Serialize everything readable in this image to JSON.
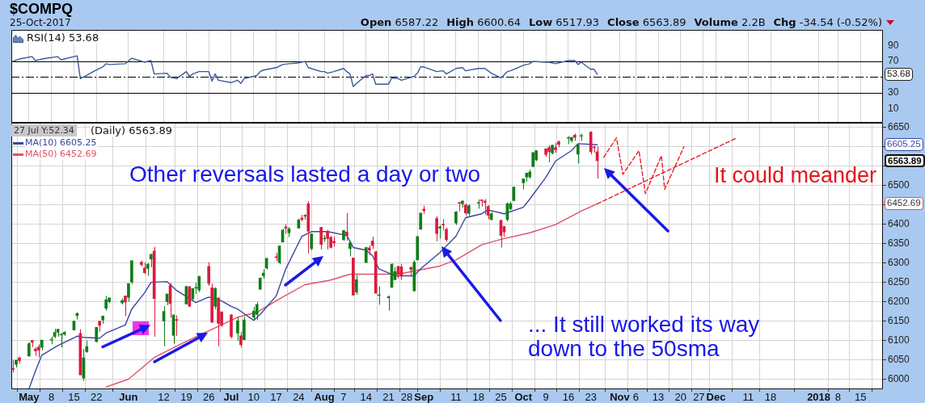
{
  "chart_data": [
    {
      "type": "line",
      "title": "$COMPQ",
      "subtitle": "25-Oct-2017",
      "annotations": [
        "Open 6587.22",
        "High 6600.64",
        "Low 6517.93",
        "Close 6563.89",
        "Volume 2.2B",
        "Chg -34.54 (-0.52%)",
        "53.68"
      ],
      "series": [
        {
          "name": "RSI(14) 53.68",
          "color": "#3b5998",
          "x": [
            "2017-04-26",
            "2017-04-28",
            "2017-05-02",
            "2017-05-03",
            "2017-05-05",
            "2017-05-10",
            "2017-05-11",
            "2017-05-16",
            "2017-05-17",
            "2017-05-18",
            "2017-05-22",
            "2017-05-24",
            "2017-05-25",
            "2017-05-26",
            "2017-05-31",
            "2017-06-02",
            "2017-06-06",
            "2017-06-08",
            "2017-06-09",
            "2017-06-13",
            "2017-06-14",
            "2017-06-16",
            "2017-06-19",
            "2017-06-20",
            "2017-06-21",
            "2017-06-23",
            "2017-06-26",
            "2017-06-27",
            "2017-06-28",
            "2017-06-29",
            "2017-07-03",
            "2017-07-05",
            "2017-07-06",
            "2017-07-07",
            "2017-07-11",
            "2017-07-12",
            "2017-07-13",
            "2017-07-17",
            "2017-07-19",
            "2017-07-21",
            "2017-07-24",
            "2017-07-26",
            "2017-07-27",
            "2017-07-31",
            "2017-08-01",
            "2017-08-02",
            "2017-08-04",
            "2017-08-07",
            "2017-08-08",
            "2017-08-09",
            "2017-08-10",
            "2017-08-11",
            "2017-08-14",
            "2017-08-15",
            "2017-08-16",
            "2017-08-17",
            "2017-08-21",
            "2017-08-22",
            "2017-08-24",
            "2017-08-25",
            "2017-08-29",
            "2017-08-30",
            "2017-08-31",
            "2017-09-01",
            "2017-09-05",
            "2017-09-07",
            "2017-09-08",
            "2017-09-11",
            "2017-09-13",
            "2017-09-14",
            "2017-09-18",
            "2017-09-20",
            "2017-09-22",
            "2017-09-25",
            "2017-09-27",
            "2017-09-28",
            "2017-10-02",
            "2017-10-04",
            "2017-10-05",
            "2017-10-09",
            "2017-10-10",
            "2017-10-12",
            "2017-10-16",
            "2017-10-18",
            "2017-10-19",
            "2017-10-20",
            "2017-10-23",
            "2017-10-24",
            "2017-10-25"
          ],
          "values": [
            70,
            73,
            76,
            71,
            73,
            76,
            72,
            77,
            48,
            50,
            59,
            63,
            67,
            66,
            67,
            74,
            69,
            71,
            54,
            55,
            50,
            48,
            57,
            51,
            54,
            57,
            57,
            45,
            54,
            46,
            43,
            46,
            42,
            48,
            52,
            57,
            59,
            62,
            66,
            67,
            68,
            70,
            62,
            57,
            57,
            55,
            57,
            61,
            57,
            54,
            38,
            42,
            52,
            52,
            54,
            41,
            41,
            49,
            48,
            46,
            51,
            55,
            63,
            63,
            57,
            58,
            54,
            61,
            62,
            58,
            61,
            61,
            55,
            49,
            57,
            58,
            65,
            67,
            70,
            69,
            69,
            67,
            71,
            71,
            66,
            69,
            60,
            60,
            53.68
          ]
        }
      ],
      "xlim": [
        "2017-04-25T12:00",
        "2018-01-22"
      ],
      "xticks": [
        {
          "value": "2017-05-01",
          "label": null
        },
        {
          "value": "2017-05-08",
          "label": null
        },
        {
          "value": "2017-05-15",
          "label": null
        },
        {
          "value": "2017-05-22",
          "label": null
        },
        {
          "value": "2017-06-01",
          "label": null
        },
        {
          "value": "2017-06-12",
          "label": null
        },
        {
          "value": "2017-06-19",
          "label": null
        },
        {
          "value": "2017-06-26",
          "label": null
        },
        {
          "value": "2017-07-03",
          "label": null
        },
        {
          "value": "2017-07-10",
          "label": null
        },
        {
          "value": "2017-07-17",
          "label": null
        },
        {
          "value": "2017-07-24",
          "label": null
        },
        {
          "value": "2017-08-01",
          "label": null
        },
        {
          "value": "2017-08-07",
          "label": null
        },
        {
          "value": "2017-08-14",
          "label": null
        },
        {
          "value": "2017-08-21",
          "label": null
        },
        {
          "value": "2017-08-28",
          "label": null
        },
        {
          "value": "2017-09-01",
          "label": null
        },
        {
          "value": "2017-09-11",
          "label": null
        },
        {
          "value": "2017-09-18",
          "label": null
        },
        {
          "value": "2017-09-25",
          "label": null
        },
        {
          "value": "2017-10-02",
          "label": null
        },
        {
          "value": "2017-10-09",
          "label": null
        },
        {
          "value": "2017-10-16",
          "label": null
        },
        {
          "value": "2017-10-23",
          "label": null
        },
        {
          "value": "2017-11-01",
          "label": null
        },
        {
          "value": "2017-11-06",
          "label": null
        },
        {
          "value": "2017-11-13",
          "label": null
        },
        {
          "value": "2017-11-20",
          "label": null
        },
        {
          "value": "2017-11-27",
          "label": null
        },
        {
          "value": "2017-12-01",
          "label": null
        },
        {
          "value": "2017-12-11",
          "label": null
        },
        {
          "value": "2017-12-18",
          "label": null
        },
        {
          "value": "2018-01-02",
          "label": null
        },
        {
          "value": "2018-01-08",
          "label": null
        },
        {
          "value": "2018-01-15",
          "label": null
        }
      ],
      "ylim": [
        -8,
        110
      ],
      "yticks": [
        10,
        30,
        {
          "value": 50,
          "label": null
        },
        70,
        90
      ],
      "ref_lines": [
        {
          "axis": "y",
          "value": 70,
          "color": "#000000"
        },
        {
          "axis": "y",
          "value": 50,
          "color": "#000000",
          "line_style": "dashed"
        },
        {
          "axis": "y",
          "value": 30,
          "color": "#000000"
        }
      ],
      "grid": "x",
      "legend": "top left",
      "tick_labels": "y"
    },
    {
      "type": "candlestick",
      "x": [
        "2017-04-26",
        "2017-04-27",
        "2017-04-28",
        "2017-05-01",
        "2017-05-02",
        "2017-05-03",
        "2017-05-04",
        "2017-05-05",
        "2017-05-08",
        "2017-05-09",
        "2017-05-10",
        "2017-05-11",
        "2017-05-12",
        "2017-05-15",
        "2017-05-16",
        "2017-05-17",
        "2017-05-18",
        "2017-05-19",
        "2017-05-22",
        "2017-05-23",
        "2017-05-24",
        "2017-05-25",
        "2017-05-26",
        "2017-05-30",
        "2017-05-31",
        "2017-06-01",
        "2017-06-02",
        "2017-06-05",
        "2017-06-06",
        "2017-06-07",
        "2017-06-08",
        "2017-06-09",
        "2017-06-12",
        "2017-06-13",
        "2017-06-14",
        "2017-06-15",
        "2017-06-16",
        "2017-06-19",
        "2017-06-20",
        "2017-06-21",
        "2017-06-22",
        "2017-06-23",
        "2017-06-26",
        "2017-06-27",
        "2017-06-28",
        "2017-06-29",
        "2017-06-30",
        "2017-07-03",
        "2017-07-05",
        "2017-07-06",
        "2017-07-07",
        "2017-07-10",
        "2017-07-11",
        "2017-07-12",
        "2017-07-13",
        "2017-07-14",
        "2017-07-17",
        "2017-07-18",
        "2017-07-19",
        "2017-07-20",
        "2017-07-21",
        "2017-07-24",
        "2017-07-25",
        "2017-07-26",
        "2017-07-27",
        "2017-07-28",
        "2017-07-31",
        "2017-08-01",
        "2017-08-02",
        "2017-08-03",
        "2017-08-04",
        "2017-08-07",
        "2017-08-08",
        "2017-08-09",
        "2017-08-10",
        "2017-08-11",
        "2017-08-14",
        "2017-08-15",
        "2017-08-16",
        "2017-08-17",
        "2017-08-18",
        "2017-08-21",
        "2017-08-22",
        "2017-08-23",
        "2017-08-24",
        "2017-08-25",
        "2017-08-28",
        "2017-08-29",
        "2017-08-30",
        "2017-08-31",
        "2017-09-01",
        "2017-09-05",
        "2017-09-06",
        "2017-09-07",
        "2017-09-08",
        "2017-09-11",
        "2017-09-12",
        "2017-09-13",
        "2017-09-14",
        "2017-09-15",
        "2017-09-18",
        "2017-09-19",
        "2017-09-20",
        "2017-09-21",
        "2017-09-22",
        "2017-09-25",
        "2017-09-26",
        "2017-09-27",
        "2017-09-28",
        "2017-09-29",
        "2017-10-02",
        "2017-10-03",
        "2017-10-04",
        "2017-10-05",
        "2017-10-06",
        "2017-10-09",
        "2017-10-10",
        "2017-10-11",
        "2017-10-12",
        "2017-10-13",
        "2017-10-16",
        "2017-10-17",
        "2017-10-18",
        "2017-10-19",
        "2017-10-20",
        "2017-10-23",
        "2017-10-24",
        "2017-10-25"
      ],
      "ohlc": [
        [
          6028,
          6050,
          6017,
          6025
        ],
        [
          6038,
          6050,
          6030,
          6049
        ],
        [
          6055,
          6058,
          6040,
          6048
        ],
        [
          6060,
          6095,
          6058,
          6092
        ],
        [
          6100,
          6100,
          6083,
          6095
        ],
        [
          6078,
          6083,
          6060,
          6073
        ],
        [
          6083,
          6090,
          6056,
          6075
        ],
        [
          6082,
          6101,
          6075,
          6101
        ],
        [
          6101,
          6110,
          6090,
          6103
        ],
        [
          6110,
          6130,
          6106,
          6121
        ],
        [
          6121,
          6130,
          6110,
          6129
        ],
        [
          6114,
          6119,
          6082,
          6116
        ],
        [
          6116,
          6124,
          6112,
          6121
        ],
        [
          6127,
          6150,
          6126,
          6150
        ],
        [
          6164,
          6172,
          6154,
          6170
        ],
        [
          6118,
          6129,
          6011,
          6011
        ],
        [
          6003,
          6078,
          5996,
          6055
        ],
        [
          6071,
          6100,
          6068,
          6084
        ],
        [
          6097,
          6134,
          6095,
          6134
        ],
        [
          6150,
          6150,
          6123,
          6139
        ],
        [
          6153,
          6163,
          6143,
          6163
        ],
        [
          6183,
          6215,
          6177,
          6205
        ],
        [
          6200,
          6210,
          6196,
          6210
        ],
        [
          6197,
          6209,
          6193,
          6203
        ],
        [
          6215,
          6215,
          6163,
          6199
        ],
        [
          6211,
          6247,
          6200,
          6247
        ],
        [
          6251,
          6306,
          6245,
          6306
        ],
        [
          6302,
          6306,
          6291,
          6296
        ],
        [
          6287,
          6301,
          6271,
          6275
        ],
        [
          6286,
          6300,
          6267,
          6297
        ],
        [
          6310,
          6324,
          6289,
          6322
        ],
        [
          6331,
          6342,
          6110,
          6208
        ],
        [
          6150,
          6188,
          6085,
          6175
        ],
        [
          6200,
          6220,
          6191,
          6220
        ],
        [
          6242,
          6248,
          6159,
          6195
        ],
        [
          6113,
          6166,
          6092,
          6166
        ],
        [
          6153,
          6165,
          6112,
          6152
        ],
        [
          6194,
          6242,
          6194,
          6239
        ],
        [
          6239,
          6240,
          6188,
          6188
        ],
        [
          6208,
          6235,
          6203,
          6234
        ],
        [
          6235,
          6249,
          6220,
          6237
        ],
        [
          6230,
          6267,
          6225,
          6265
        ],
        [
          6291,
          6302,
          6241,
          6247
        ],
        [
          6236,
          6247,
          6146,
          6147
        ],
        [
          6188,
          6237,
          6181,
          6234
        ],
        [
          6210,
          6210,
          6085,
          6144
        ],
        [
          6174,
          6174,
          6135,
          6140
        ],
        [
          6166,
          6168,
          6105,
          6110
        ],
        [
          6119,
          6160,
          6099,
          6151
        ],
        [
          6112,
          6122,
          6082,
          6089
        ],
        [
          6102,
          6161,
          6101,
          6153
        ],
        [
          6160,
          6187,
          6155,
          6176
        ],
        [
          6167,
          6199,
          6153,
          6193
        ],
        [
          6232,
          6262,
          6232,
          6261
        ],
        [
          6267,
          6284,
          6260,
          6274
        ],
        [
          6287,
          6313,
          6283,
          6312
        ],
        [
          6316,
          6326,
          6305,
          6314
        ],
        [
          6301,
          6345,
          6297,
          6344
        ],
        [
          6354,
          6388,
          6353,
          6385
        ],
        [
          6393,
          6400,
          6375,
          6390
        ],
        [
          6378,
          6393,
          6367,
          6388
        ],
        [
          6390,
          6414,
          6390,
          6411
        ],
        [
          6416,
          6424,
          6408,
          6412
        ],
        [
          6421,
          6426,
          6412,
          6423
        ],
        [
          6453,
          6460,
          6325,
          6382
        ],
        [
          6337,
          6376,
          6332,
          6375
        ],
        [
          6392,
          6393,
          6335,
          6348
        ],
        [
          6362,
          6372,
          6355,
          6363
        ],
        [
          6381,
          6386,
          6335,
          6363
        ],
        [
          6366,
          6370,
          6338,
          6340
        ],
        [
          6356,
          6368,
          6342,
          6352
        ],
        [
          6360,
          6384,
          6357,
          6384
        ],
        [
          6380,
          6429,
          6358,
          6370
        ],
        [
          6337,
          6356,
          6317,
          6352
        ],
        [
          6313,
          6313,
          6216,
          6217
        ],
        [
          6225,
          6269,
          6218,
          6257
        ],
        [
          6301,
          6341,
          6301,
          6340
        ],
        [
          6339,
          6345,
          6320,
          6333
        ],
        [
          6357,
          6368,
          6336,
          6345
        ],
        [
          6329,
          6331,
          6221,
          6222
        ],
        [
          6216,
          6240,
          6192,
          6217
        ],
        [
          6210,
          6216,
          6177,
          6213
        ],
        [
          6237,
          6299,
          6237,
          6297
        ],
        [
          6257,
          6289,
          6256,
          6278
        ],
        [
          6291,
          6292,
          6260,
          6271
        ],
        [
          6290,
          6298,
          6256,
          6266
        ],
        [
          6289,
          6290,
          6265,
          6283
        ],
        [
          6228,
          6307,
          6226,
          6302
        ],
        [
          6308,
          6371,
          6308,
          6368
        ],
        [
          6387,
          6429,
          6386,
          6429
        ],
        [
          6439,
          6448,
          6427,
          6435
        ],
        [
          6415,
          6421,
          6356,
          6376
        ],
        [
          6390,
          6398,
          6363,
          6393
        ],
        [
          6399,
          6413,
          6384,
          6398
        ],
        [
          6387,
          6391,
          6355,
          6360
        ],
        [
          6403,
          6434,
          6398,
          6432
        ],
        [
          6455,
          6458,
          6433,
          6454
        ],
        [
          6453,
          6461,
          6443,
          6460
        ],
        [
          6450,
          6453,
          6423,
          6429
        ],
        [
          6428,
          6452,
          6421,
          6448
        ],
        [
          6454,
          6464,
          6440,
          6455
        ],
        [
          6463,
          6463,
          6446,
          6461
        ],
        [
          6460,
          6465,
          6425,
          6456
        ],
        [
          6446,
          6449,
          6413,
          6423
        ],
        [
          6412,
          6432,
          6410,
          6427
        ],
        [
          6410,
          6412,
          6340,
          6371
        ],
        [
          6394,
          6396,
          6367,
          6380
        ],
        [
          6412,
          6456,
          6408,
          6453
        ],
        [
          6440,
          6458,
          6436,
          6453
        ],
        [
          6461,
          6496,
          6460,
          6496
        ],
        [
          6507,
          6517,
          6490,
          6517
        ],
        [
          6522,
          6532,
          6510,
          6532
        ],
        [
          6522,
          6541,
          6518,
          6535
        ],
        [
          6549,
          6586,
          6547,
          6585
        ],
        [
          6566,
          6590,
          6563,
          6590
        ],
        [
          6595,
          6595,
          6574,
          6580
        ],
        [
          6598,
          6604,
          6560,
          6587
        ],
        [
          6584,
          6605,
          6580,
          6604
        ],
        [
          6598,
          6610,
          6584,
          6592
        ],
        [
          6613,
          6616,
          6599,
          6606
        ],
        [
          6622,
          6627,
          6607,
          6624
        ],
        [
          6616,
          6626,
          6611,
          6624
        ],
        [
          6630,
          6634,
          6615,
          6624
        ],
        [
          6581,
          6606,
          6557,
          6605
        ],
        [
          6627,
          6634,
          6615,
          6629
        ],
        [
          6638,
          6640,
          6580,
          6587
        ],
        [
          6600,
          6602,
          6585,
          6598
        ],
        [
          6587.22,
          6600.64,
          6517.93,
          6563.89
        ]
      ],
      "colors": [
        "#dc1a3c",
        "#0e7d18",
        "#dc1a3c",
        "#0e7d18",
        "#dc1a3c",
        "#dc1a3c",
        "#dc1a3c",
        "#0e7d18",
        "#0e7d18",
        "#0e7d18",
        "#0e7d18",
        "#0e7d18",
        "#0e7d18",
        "#0e7d18",
        "#0e7d18",
        "#dc1a3c",
        "#0e7d18",
        "#0e7d18",
        "#0e7d18",
        "#dc1a3c",
        "#0e7d18",
        "#0e7d18",
        "#0e7d18",
        "#0e7d18",
        "#dc1a3c",
        "#0e7d18",
        "#0e7d18",
        "#dc1a3c",
        "#dc1a3c",
        "#0e7d18",
        "#0e7d18",
        "#dc1a3c",
        "#0e7d18",
        "#0e7d18",
        "#dc1a3c",
        "#0e7d18",
        "#dc1a3c",
        "#0e7d18",
        "#dc1a3c",
        "#0e7d18",
        "#0e7d18",
        "#0e7d18",
        "#dc1a3c",
        "#dc1a3c",
        "#0e7d18",
        "#dc1a3c",
        "#dc1a3c",
        "#dc1a3c",
        "#0e7d18",
        "#dc1a3c",
        "#0e7d18",
        "#0e7d18",
        "#0e7d18",
        "#0e7d18",
        "#0e7d18",
        "#0e7d18",
        "#dc1a3c",
        "#0e7d18",
        "#0e7d18",
        "#dc1a3c",
        "#0e7d18",
        "#0e7d18",
        "#dc1a3c",
        "#0e7d18",
        "#dc1a3c",
        "#0e7d18",
        "#dc1a3c",
        "#0e7d18",
        "#dc1a3c",
        "#dc1a3c",
        "#dc1a3c",
        "#0e7d18",
        "#dc1a3c",
        "#0e7d18",
        "#dc1a3c",
        "#0e7d18",
        "#0e7d18",
        "#dc1a3c",
        "#dc1a3c",
        "#dc1a3c",
        "#0e7d18",
        "#0e7d18",
        "#0e7d18",
        "#0e7d18",
        "#dc1a3c",
        "#dc1a3c",
        "#dc1a3c",
        "#0e7d18",
        "#0e7d18",
        "#0e7d18",
        "#dc1a3c",
        "#dc1a3c",
        "#0e7d18",
        "#dc1a3c",
        "#dc1a3c",
        "#0e7d18",
        "#dc1a3c",
        "#0e7d18",
        "#dc1a3c",
        "#0e7d18",
        "#0e7d18",
        "#dc1a3c",
        "#dc1a3c",
        "#dc1a3c",
        "#0e7d18",
        "#dc1a3c",
        "#dc1a3c",
        "#0e7d18",
        "#0e7d18",
        "#0e7d18",
        "#0e7d18",
        "#0e7d18",
        "#0e7d18",
        "#0e7d18",
        "#0e7d18",
        "#dc1a3c",
        "#dc1a3c",
        "#0e7d18",
        "#dc1a3c",
        "#dc1a3c",
        "#0e7d18",
        "#0e7d18",
        "#dc1a3c",
        "#0e7d18",
        "#0e7d18",
        "#dc1a3c",
        "#dc1a3c",
        "#dc1a3c"
      ],
      "series": [
        {
          "name": "MA(10) 6605.25",
          "type": "line",
          "color": "#3a46a0",
          "x": [
            "2017-05-01",
            "2017-05-03",
            "2017-05-05",
            "2017-05-10",
            "2017-05-16",
            "2017-05-18",
            "2017-05-23",
            "2017-05-25",
            "2017-05-31",
            "2017-06-02",
            "2017-06-06",
            "2017-06-08",
            "2017-06-13",
            "2017-06-16",
            "2017-06-22",
            "2017-06-26",
            "2017-06-30",
            "2017-07-03",
            "2017-07-05",
            "2017-07-10",
            "2017-07-12",
            "2017-07-17",
            "2017-07-20",
            "2017-07-25",
            "2017-07-28",
            "2017-08-02",
            "2017-08-08",
            "2017-08-10",
            "2017-08-14",
            "2017-08-16",
            "2017-08-18",
            "2017-08-23",
            "2017-08-29",
            "2017-08-31",
            "2017-09-06",
            "2017-09-11",
            "2017-09-14",
            "2017-09-19",
            "2017-09-21",
            "2017-09-26",
            "2017-10-02",
            "2017-10-04",
            "2017-10-09",
            "2017-10-12",
            "2017-10-17",
            "2017-10-19",
            "2017-10-25"
          ],
          "values": [
            5975,
            6021,
            6062,
            6087,
            6111,
            6108,
            6106,
            6119,
            6140,
            6181,
            6223,
            6250,
            6252,
            6229,
            6198,
            6212,
            6202,
            6188,
            6181,
            6152,
            6167,
            6215,
            6285,
            6369,
            6381,
            6381,
            6371,
            6340,
            6333,
            6319,
            6285,
            6267,
            6267,
            6285,
            6327,
            6369,
            6417,
            6427,
            6437,
            6427,
            6444,
            6465,
            6521,
            6563,
            6590,
            6608,
            6605.25
          ]
        },
        {
          "name": "MA(50) 6452.69",
          "type": "line",
          "color": "#e0506a",
          "x": [
            "2017-05-25",
            "2017-06-01",
            "2017-06-09",
            "2017-06-19",
            "2017-06-26",
            "2017-07-05",
            "2017-07-11",
            "2017-07-19",
            "2017-07-26",
            "2017-08-03",
            "2017-08-09",
            "2017-08-16",
            "2017-08-24",
            "2017-08-30",
            "2017-09-06",
            "2017-09-11",
            "2017-09-19",
            "2017-09-25",
            "2017-10-04",
            "2017-10-12",
            "2017-10-20",
            "2017-10-25"
          ],
          "values": [
            5980,
            6000,
            6056,
            6098,
            6125,
            6160,
            6173,
            6212,
            6244,
            6256,
            6271,
            6271,
            6271,
            6281,
            6292,
            6308,
            6347,
            6361,
            6378,
            6399,
            6434,
            6452.69
          ]
        },
        {
          "type": "line",
          "color": "#e8202a",
          "line_style": "dashed",
          "x": [
            "2017-10-25",
            "2017-12-07"
          ],
          "values": [
            6452.69,
            6621
          ]
        },
        {
          "type": "line",
          "color": "#e8202a",
          "line_style": "dashed",
          "x": [
            "2017-10-27",
            "2017-10-31",
            "2017-11-02",
            "2017-11-07",
            "2017-11-09",
            "2017-11-14",
            "2017-11-15",
            "2017-11-21"
          ],
          "values": [
            6573,
            6623,
            6529,
            6590,
            6479,
            6577,
            6490,
            6600
          ]
        }
      ],
      "annotations": [
        "27 Jul Y:52.34",
        "(Daily) 6563.89",
        "Other reversals lasted a day or two",
        "It could meander",
        "... It still worked its way down to the 50sma",
        "6605.25",
        "6563.89",
        "6452.69"
      ],
      "xlim": [
        "2017-04-25T12:00",
        "2018-01-22"
      ],
      "xticks": [
        {
          "value": "2017-05-01",
          "label": "May"
        },
        {
          "value": "2017-05-08",
          "label": "8"
        },
        {
          "value": "2017-05-15",
          "label": "15"
        },
        {
          "value": "2017-05-22",
          "label": "22"
        },
        {
          "value": "2017-06-01",
          "label": "Jun"
        },
        {
          "value": "2017-06-12",
          "label": "12"
        },
        {
          "value": "2017-06-19",
          "label": "19"
        },
        {
          "value": "2017-06-26",
          "label": "26"
        },
        {
          "value": "2017-07-03",
          "label": "Jul"
        },
        {
          "value": "2017-07-10",
          "label": "10"
        },
        {
          "value": "2017-07-17",
          "label": "17"
        },
        {
          "value": "2017-07-24",
          "label": "24"
        },
        {
          "value": "2017-08-01",
          "label": "Aug"
        },
        {
          "value": "2017-08-07",
          "label": "7"
        },
        {
          "value": "2017-08-14",
          "label": "14"
        },
        {
          "value": "2017-08-21",
          "label": "21"
        },
        {
          "value": "2017-08-28",
          "label": "28"
        },
        {
          "value": "2017-09-01",
          "label": "Sep"
        },
        {
          "value": "2017-09-11",
          "label": "11"
        },
        {
          "value": "2017-09-18",
          "label": "18"
        },
        {
          "value": "2017-09-25",
          "label": "25"
        },
        {
          "value": "2017-10-02",
          "label": "Oct"
        },
        {
          "value": "2017-10-09",
          "label": "9"
        },
        {
          "value": "2017-10-16",
          "label": "16"
        },
        {
          "value": "2017-10-23",
          "label": "23"
        },
        {
          "value": "2017-11-01",
          "label": "Nov"
        },
        {
          "value": "2017-11-06",
          "label": "6"
        },
        {
          "value": "2017-11-13",
          "label": "13"
        },
        {
          "value": "2017-11-20",
          "label": "20"
        },
        {
          "value": "2017-11-27",
          "label": "27"
        },
        {
          "value": "2017-12-01",
          "label": "Dec"
        },
        {
          "value": "2017-12-11",
          "label": "11"
        },
        {
          "value": "2017-12-18",
          "label": "18"
        },
        {
          "value": "2018-01-02",
          "label": "2018"
        },
        {
          "value": "2018-01-08",
          "label": "8"
        },
        {
          "value": "2018-01-15",
          "label": "15"
        }
      ],
      "ylim": [
        5974,
        6662
      ],
      "yticks": [
        6000,
        6050,
        6100,
        6150,
        6200,
        6250,
        6300,
        6350,
        6400,
        {
          "value": 6450,
          "label": null
        },
        6500,
        {
          "value": 6550,
          "label": null
        },
        {
          "value": 6600,
          "label": null
        },
        6650
      ],
      "grid": true,
      "legend": "top left"
    }
  ]
}
